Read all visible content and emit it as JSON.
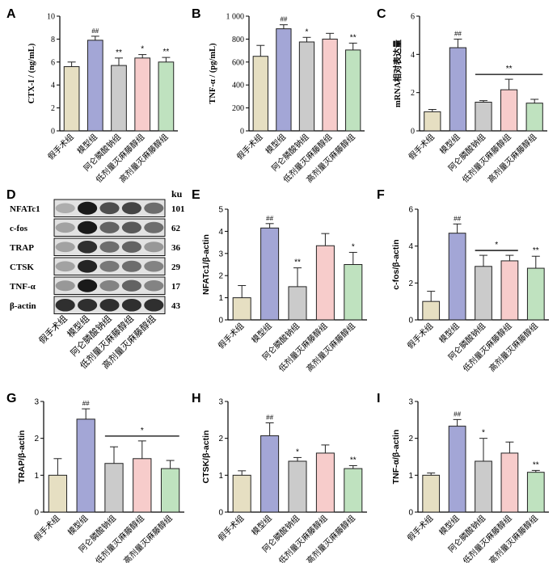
{
  "colors": {
    "sham": "#e6dfc2",
    "model": "#a3a6d6",
    "alendronate": "#cbcbcb",
    "low_dose": "#f7cccb",
    "high_dose": "#bfe2bf",
    "stroke": "#222222"
  },
  "groups": [
    "假手术组",
    "模型组",
    "阿仑膦酸钠组",
    "低剂量灭麻藤醇组",
    "高剂量灭麻藤醇组"
  ],
  "chart_data": [
    {
      "panel": "A",
      "type": "bar",
      "ylabel": "CTX-I / (ng/mL)",
      "categories": [
        "假手术组",
        "模型组",
        "阿仑膦酸钠组",
        "低剂量灭麻藤醇组",
        "高剂量灭麻藤醇组"
      ],
      "values": [
        5.6,
        7.9,
        5.7,
        6.35,
        6.0
      ],
      "errors": [
        0.4,
        0.35,
        0.65,
        0.3,
        0.4
      ],
      "marks": [
        "",
        "##",
        "**",
        "*",
        "**"
      ],
      "ylim": [
        0,
        10
      ],
      "yticks": [
        "0",
        "2",
        "4",
        "6",
        "8",
        "10"
      ],
      "ytick_values": [
        0,
        2,
        4,
        6,
        8,
        10
      ]
    },
    {
      "panel": "B",
      "type": "bar",
      "ylabel": "TNF-α / (pg/mL)",
      "categories": [
        "假手术组",
        "模型组",
        "阿仑膦酸钠组",
        "低剂量灭麻藤醇组",
        "高剂量灭麻藤醇组"
      ],
      "values": [
        650,
        890,
        775,
        800,
        705
      ],
      "errors": [
        95,
        35,
        40,
        50,
        60
      ],
      "marks": [
        "",
        "##",
        "*",
        "",
        "**"
      ],
      "ylim": [
        0,
        1000
      ],
      "yticks": [
        "0",
        "200",
        "400",
        "600",
        "800",
        "1 000"
      ],
      "ytick_values": [
        0,
        200,
        400,
        600,
        800,
        1000
      ]
    },
    {
      "panel": "C",
      "type": "bar",
      "ylabel": "mRNA相对表达量",
      "categories": [
        "假手术组",
        "模型组",
        "阿仑膦酸钠组",
        "低剂量灭麻藤醇组",
        "高剂量灭麻藤醇组"
      ],
      "values": [
        1.0,
        4.35,
        1.5,
        2.15,
        1.45
      ],
      "errors": [
        0.12,
        0.45,
        0.08,
        0.55,
        0.2
      ],
      "marks": [
        "",
        "##",
        "",
        "",
        ""
      ],
      "bracket": {
        "from": 2,
        "to": 4,
        "label": "**"
      },
      "ylim": [
        0,
        6
      ],
      "yticks": [
        "0",
        "2",
        "4",
        "6"
      ],
      "ytick_values": [
        0,
        2,
        4,
        6
      ]
    },
    {
      "panel": "E",
      "type": "bar",
      "ylabel": "NFATc1/β-actin",
      "categories": [
        "假手术组",
        "模型组",
        "阿仑膦酸钠组",
        "低剂量灭麻藤醇组",
        "高剂量灭麻藤醇组"
      ],
      "values": [
        1.0,
        4.15,
        1.5,
        3.35,
        2.5
      ],
      "errors": [
        0.55,
        0.2,
        0.85,
        0.55,
        0.55
      ],
      "marks": [
        "",
        "##",
        "**",
        "",
        "*"
      ],
      "ylim": [
        0,
        5
      ],
      "yticks": [
        "0",
        "1",
        "2",
        "3",
        "4",
        "5"
      ],
      "ytick_values": [
        0,
        1,
        2,
        3,
        4,
        5
      ]
    },
    {
      "panel": "F",
      "type": "bar",
      "ylabel": "c-fos/β-actin",
      "categories": [
        "假手术组",
        "模型组",
        "阿仑膦酸钠组",
        "低剂量灭麻藤醇组",
        "高剂量灭麻藤醇组"
      ],
      "values": [
        1.0,
        4.7,
        2.9,
        3.2,
        2.8
      ],
      "errors": [
        0.55,
        0.5,
        0.6,
        0.3,
        0.65
      ],
      "marks": [
        "",
        "##",
        "",
        "",
        "**"
      ],
      "bracket": {
        "from": 2,
        "to": 3,
        "label": "*"
      },
      "ylim": [
        0,
        6
      ],
      "yticks": [
        "0",
        "2",
        "4",
        "6"
      ],
      "ytick_values": [
        0,
        2,
        4,
        6
      ]
    },
    {
      "panel": "G",
      "type": "bar",
      "ylabel": "TRAP/β-actin",
      "categories": [
        "假手术组",
        "模型组",
        "阿仑膦酸钠组",
        "低剂量灭麻藤醇组",
        "高剂量灭麻藤醇组"
      ],
      "values": [
        1.0,
        2.52,
        1.32,
        1.45,
        1.18
      ],
      "errors": [
        0.45,
        0.28,
        0.45,
        0.48,
        0.22
      ],
      "marks": [
        "",
        "##",
        "",
        "",
        ""
      ],
      "bracket": {
        "from": 2,
        "to": 4,
        "label": "*"
      },
      "ylim": [
        0,
        3
      ],
      "yticks": [
        "0",
        "1",
        "2",
        "3"
      ],
      "ytick_values": [
        0,
        1,
        2,
        3
      ]
    },
    {
      "panel": "H",
      "type": "bar",
      "ylabel": "CTSK/β-actin",
      "categories": [
        "假手术组",
        "模型组",
        "阿仑膦酸钠组",
        "低剂量灭麻藤醇组",
        "高剂量灭麻藤醇组"
      ],
      "values": [
        1.0,
        2.07,
        1.38,
        1.6,
        1.18
      ],
      "errors": [
        0.12,
        0.35,
        0.1,
        0.22,
        0.08
      ],
      "marks": [
        "",
        "##",
        "*",
        "",
        "**"
      ],
      "ylim": [
        0,
        3
      ],
      "yticks": [
        "0",
        "1",
        "2",
        "3"
      ],
      "ytick_values": [
        0,
        1,
        2,
        3
      ]
    },
    {
      "panel": "I",
      "type": "bar",
      "ylabel": "TNF-α/β-actin",
      "categories": [
        "假手术组",
        "模型组",
        "阿仑膦酸钠组",
        "低剂量灭麻藤醇组",
        "高剂量灭麻藤醇组"
      ],
      "values": [
        1.0,
        2.33,
        1.38,
        1.6,
        1.08
      ],
      "errors": [
        0.06,
        0.18,
        0.62,
        0.3,
        0.05
      ],
      "marks": [
        "",
        "##",
        "*",
        "",
        "**"
      ],
      "ylim": [
        0,
        3
      ],
      "yticks": [
        "0",
        "1",
        "2",
        "3"
      ],
      "ytick_values": [
        0,
        1,
        2,
        3
      ]
    }
  ],
  "western_blot": {
    "panel": "D",
    "unit_label": "ku",
    "proteins": [
      "NFATc1",
      "c-fos",
      "TRAP",
      "CTSK",
      "TNF-α",
      "β-actin"
    ],
    "sizes": [
      "101",
      "62",
      "36",
      "29",
      "17",
      "43"
    ],
    "band_intensity": [
      [
        0.25,
        0.95,
        0.7,
        0.75,
        0.55
      ],
      [
        0.3,
        0.95,
        0.6,
        0.65,
        0.55
      ],
      [
        0.3,
        0.85,
        0.55,
        0.6,
        0.35
      ],
      [
        0.3,
        0.9,
        0.5,
        0.55,
        0.45
      ],
      [
        0.35,
        0.95,
        0.45,
        0.6,
        0.45
      ],
      [
        0.85,
        0.85,
        0.85,
        0.85,
        0.85
      ]
    ]
  }
}
